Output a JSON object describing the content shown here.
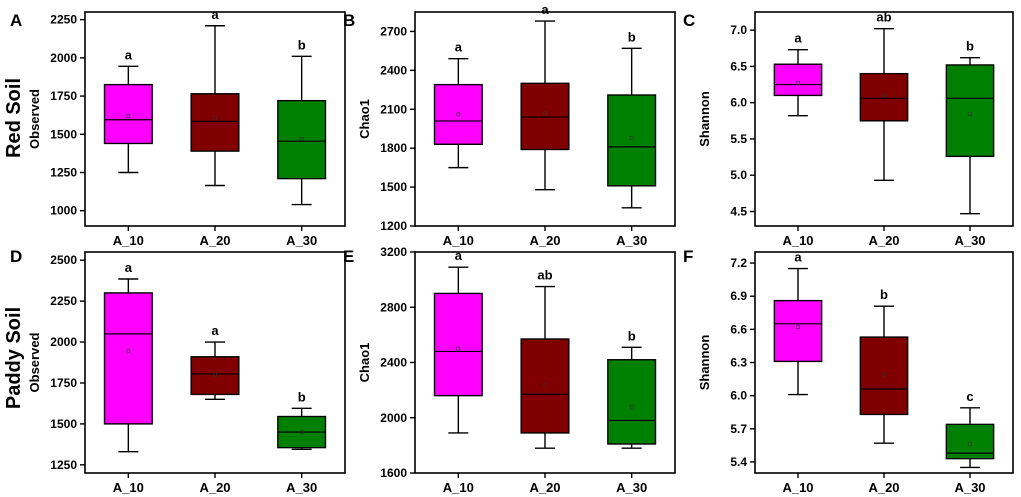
{
  "row_labels": [
    "Red Soil",
    "Paddy Soil"
  ],
  "colors": {
    "A_10": "#ff00ff",
    "A_20": "#800000",
    "A_30": "#008000",
    "axis": "#000000"
  },
  "chart_data": [
    {
      "panel": "A",
      "row": "Red Soil",
      "type": "box",
      "ylabel": "Observed",
      "categories": [
        "A_10",
        "A_20",
        "A_30"
      ],
      "ylim": [
        900,
        2300
      ],
      "yticks": [
        1000,
        1250,
        1500,
        1750,
        2000,
        2250
      ],
      "boxes": [
        {
          "category": "A_10",
          "whisker_low": 1250,
          "q1": 1440,
          "median": 1595,
          "q3": 1825,
          "whisker_high": 1945,
          "mean": 1620,
          "sig": "a"
        },
        {
          "category": "A_20",
          "whisker_low": 1165,
          "q1": 1390,
          "median": 1585,
          "q3": 1765,
          "whisker_high": 2210,
          "mean": 1605,
          "sig": "a"
        },
        {
          "category": "A_30",
          "whisker_low": 1040,
          "q1": 1210,
          "median": 1455,
          "q3": 1720,
          "whisker_high": 2010,
          "mean": 1470,
          "sig": "b"
        }
      ]
    },
    {
      "panel": "B",
      "row": "Red Soil",
      "type": "box",
      "ylabel": "Chao1",
      "categories": [
        "A_10",
        "A_20",
        "A_30"
      ],
      "ylim": [
        1200,
        2850
      ],
      "yticks": [
        1200,
        1500,
        1800,
        2100,
        2400,
        2700
      ],
      "boxes": [
        {
          "category": "A_10",
          "whisker_low": 1650,
          "q1": 1830,
          "median": 2010,
          "q3": 2290,
          "whisker_high": 2490,
          "mean": 2060,
          "sig": "a"
        },
        {
          "category": "A_20",
          "whisker_low": 1480,
          "q1": 1790,
          "median": 2040,
          "q3": 2300,
          "whisker_high": 2780,
          "mean": 2070,
          "sig": "a"
        },
        {
          "category": "A_30",
          "whisker_low": 1340,
          "q1": 1510,
          "median": 1810,
          "q3": 2210,
          "whisker_high": 2570,
          "mean": 1880,
          "sig": "b"
        }
      ]
    },
    {
      "panel": "C",
      "row": "Red Soil",
      "type": "box",
      "ylabel": "Shannon",
      "categories": [
        "A_10",
        "A_20",
        "A_30"
      ],
      "ylim": [
        4.3,
        7.25
      ],
      "yticks": [
        4.5,
        5.0,
        5.5,
        6.0,
        6.5,
        7.0
      ],
      "boxes": [
        {
          "category": "A_10",
          "whisker_low": 5.82,
          "q1": 6.1,
          "median": 6.25,
          "q3": 6.53,
          "whisker_high": 6.73,
          "mean": 6.27,
          "sig": "a"
        },
        {
          "category": "A_20",
          "whisker_low": 4.93,
          "q1": 5.75,
          "median": 6.06,
          "q3": 6.4,
          "whisker_high": 7.02,
          "mean": 6.1,
          "sig": "ab"
        },
        {
          "category": "A_30",
          "whisker_low": 4.47,
          "q1": 5.26,
          "median": 6.06,
          "q3": 6.52,
          "whisker_high": 6.62,
          "mean": 5.84,
          "sig": "b"
        }
      ]
    },
    {
      "panel": "D",
      "row": "Paddy Soil",
      "type": "box",
      "ylabel": "Observed",
      "categories": [
        "A_10",
        "A_20",
        "A_30"
      ],
      "ylim": [
        1200,
        2550
      ],
      "yticks": [
        1250,
        1500,
        1750,
        2000,
        2250,
        2500
      ],
      "boxes": [
        {
          "category": "A_10",
          "whisker_low": 1330,
          "q1": 1500,
          "median": 2050,
          "q3": 2300,
          "whisker_high": 2385,
          "mean": 1945,
          "sig": "a"
        },
        {
          "category": "A_20",
          "whisker_low": 1650,
          "q1": 1680,
          "median": 1805,
          "q3": 1910,
          "whisker_high": 2000,
          "mean": 1800,
          "sig": "a"
        },
        {
          "category": "A_30",
          "whisker_low": 1345,
          "q1": 1355,
          "median": 1450,
          "q3": 1545,
          "whisker_high": 1595,
          "mean": 1450,
          "sig": "b"
        }
      ]
    },
    {
      "panel": "E",
      "row": "Paddy Soil",
      "type": "box",
      "ylabel": "Chao1",
      "categories": [
        "A_10",
        "A_20",
        "A_30"
      ],
      "ylim": [
        1600,
        3200
      ],
      "yticks": [
        1600,
        2000,
        2400,
        2800,
        3200
      ],
      "boxes": [
        {
          "category": "A_10",
          "whisker_low": 1890,
          "q1": 2160,
          "median": 2480,
          "q3": 2900,
          "whisker_high": 3090,
          "mean": 2500,
          "sig": "a"
        },
        {
          "category": "A_20",
          "whisker_low": 1780,
          "q1": 1890,
          "median": 2170,
          "q3": 2570,
          "whisker_high": 2950,
          "mean": 2240,
          "sig": "ab"
        },
        {
          "category": "A_30",
          "whisker_low": 1780,
          "q1": 1810,
          "median": 1980,
          "q3": 2420,
          "whisker_high": 2510,
          "mean": 2080,
          "sig": "b"
        }
      ]
    },
    {
      "panel": "F",
      "row": "Paddy Soil",
      "type": "box",
      "ylabel": "Shannon",
      "categories": [
        "A_10",
        "A_20",
        "A_30"
      ],
      "ylim": [
        5.3,
        7.3
      ],
      "yticks": [
        5.4,
        5.7,
        6.0,
        6.3,
        6.6,
        6.9,
        7.2
      ],
      "boxes": [
        {
          "category": "A_10",
          "whisker_low": 6.01,
          "q1": 6.31,
          "median": 6.65,
          "q3": 6.86,
          "whisker_high": 7.15,
          "mean": 6.62,
          "sig": "a"
        },
        {
          "category": "A_20",
          "whisker_low": 5.57,
          "q1": 5.83,
          "median": 6.06,
          "q3": 6.53,
          "whisker_high": 6.81,
          "mean": 6.19,
          "sig": "b"
        },
        {
          "category": "A_30",
          "whisker_low": 5.35,
          "q1": 5.43,
          "median": 5.48,
          "q3": 5.74,
          "whisker_high": 5.89,
          "mean": 5.56,
          "sig": "c"
        }
      ]
    }
  ]
}
